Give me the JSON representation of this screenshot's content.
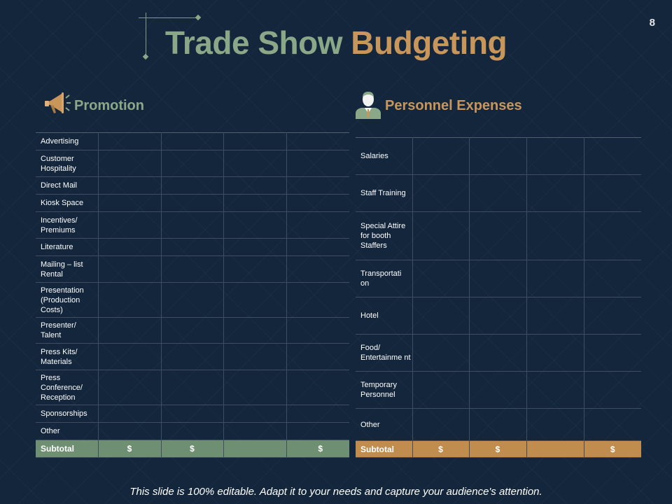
{
  "slide_number": "8",
  "title": {
    "part1": "Trade Show",
    "part2": "Budgeting"
  },
  "promotion": {
    "heading": "Promotion",
    "icon": "megaphone-icon",
    "rows": [
      "Advertising",
      "Customer Hospitality",
      "Direct Mail",
      "Kiosk Space",
      "Incentives/ Premiums",
      "Literature",
      "Mailing – list Rental",
      "Presentation (Production Costs)",
      "Presenter/ Talent",
      "Press Kits/ Materials",
      "Press Conference/ Reception",
      "Sponsorships",
      "Other"
    ],
    "subtotal": {
      "label": "Subtotal",
      "cells": [
        "$",
        "$",
        "",
        "$"
      ]
    }
  },
  "personnel": {
    "heading": "Personnel Expenses",
    "icon": "person-icon",
    "rows": [
      "Salaries",
      "Staff Training",
      "Special Attire for booth Staffers",
      "Transportati on",
      "Hotel",
      "Food/ Entertainme nt",
      "Temporary Personnel",
      "Other"
    ],
    "subtotal": {
      "label": "Subtotal",
      "cells": [
        "$",
        "$",
        "",
        "$"
      ]
    }
  },
  "footer": "This slide is 100% editable. Adapt it to your needs and capture your audience's attention.",
  "colors": {
    "background": "#13263c",
    "green": "#8aa888",
    "gold": "#c8965a",
    "green_fill": "#6e8f72",
    "gold_fill": "#c08d4e"
  }
}
